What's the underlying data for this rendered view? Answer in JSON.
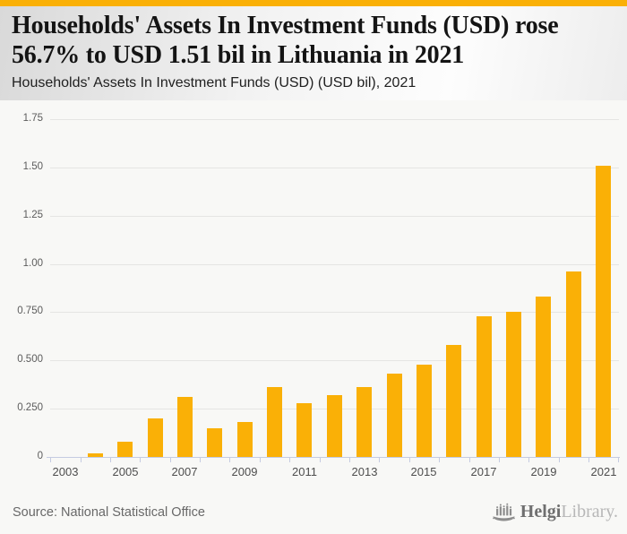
{
  "brand": {
    "accent_color": "#FAB006",
    "logo_text_primary": "Helgi",
    "logo_text_secondary": "Library.",
    "logo_icon": "bar-chart-ship-icon"
  },
  "header": {
    "title": "Households' Assets In Investment Funds (USD) rose 56.7% to USD 1.51 bil in Lithuania in 2021",
    "subtitle": "Households' Assets In Investment Funds (USD) (USD bil), 2021"
  },
  "footer": {
    "source": "Source: National Statistical Office"
  },
  "chart_data": {
    "type": "bar",
    "title": "Households' Assets In Investment Funds (USD) rose 56.7% to USD 1.51 bil in Lithuania in 2021",
    "subtitle": "Households' Assets In Investment Funds (USD) (USD bil), 2021",
    "xlabel": "",
    "ylabel": "",
    "categories": [
      "2003",
      "2004",
      "2005",
      "2006",
      "2007",
      "2008",
      "2009",
      "2010",
      "2011",
      "2012",
      "2013",
      "2014",
      "2015",
      "2016",
      "2017",
      "2018",
      "2019",
      "2020",
      "2021"
    ],
    "values": [
      0.0,
      0.02,
      0.08,
      0.2,
      0.31,
      0.15,
      0.18,
      0.36,
      0.28,
      0.32,
      0.36,
      0.43,
      0.48,
      0.58,
      0.73,
      0.75,
      0.83,
      0.96,
      1.51
    ],
    "bar_color": "#FAB006",
    "ylim": [
      0,
      1.75
    ],
    "y_tick_values": [
      1.75,
      1.5,
      1.25,
      1.0,
      0.75,
      0.5,
      0.25,
      0
    ],
    "y_tick_labels": [
      "1.75",
      "1.50",
      "1.25",
      "1.00",
      "0.750",
      "0.500",
      "0.250",
      "0"
    ],
    "x_tick_labels": [
      "2003",
      "2005",
      "2007",
      "2009",
      "2011",
      "2013",
      "2015",
      "2017",
      "2019",
      "2021"
    ],
    "grid": "horizontal",
    "legend": "none"
  }
}
